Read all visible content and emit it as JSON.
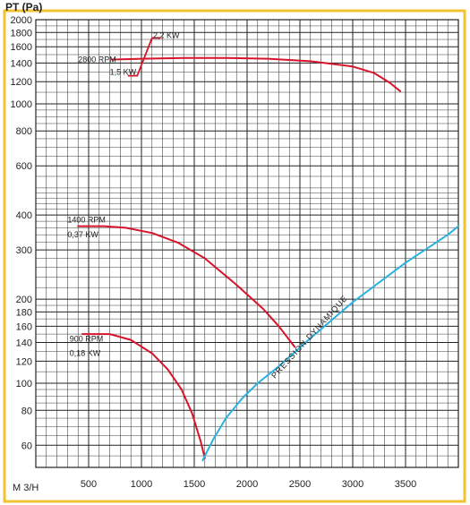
{
  "chart_data": {
    "type": "line",
    "title": "",
    "ylabel": "PT (Pa)",
    "xlabel": "M 3/H",
    "xlim": [
      0,
      4000
    ],
    "ylim": [
      50,
      2000
    ],
    "y_scale": "log",
    "x_ticks": [
      "500",
      "1000",
      "1500",
      "2000",
      "2500",
      "3000",
      "3500"
    ],
    "y_ticks": [
      "2000",
      "1800",
      "1600",
      "1400",
      "1200",
      "1000",
      "800",
      "600",
      "400",
      "300",
      "200",
      "180",
      "160",
      "140",
      "120",
      "100",
      "80",
      "60"
    ],
    "grid": true,
    "series": [
      {
        "name": "2800 RPM",
        "color": "#d7142a",
        "points": [
          [
            720,
            1440
          ],
          [
            1000,
            1450
          ],
          [
            1400,
            1460
          ],
          [
            1800,
            1460
          ],
          [
            2200,
            1450
          ],
          [
            2600,
            1420
          ],
          [
            3000,
            1360
          ],
          [
            3200,
            1290
          ],
          [
            3350,
            1190
          ],
          [
            3450,
            1110
          ]
        ]
      },
      {
        "name": "1400 RPM 0,37 KW",
        "color": "#d7142a",
        "points": [
          [
            400,
            365
          ],
          [
            650,
            365
          ],
          [
            850,
            360
          ],
          [
            1100,
            345
          ],
          [
            1350,
            318
          ],
          [
            1600,
            280
          ],
          [
            1900,
            225
          ],
          [
            2150,
            185
          ],
          [
            2300,
            160
          ],
          [
            2450,
            135
          ]
        ]
      },
      {
        "name": "900 RPM 0,18 KW",
        "color": "#d7142a",
        "points": [
          [
            440,
            150
          ],
          [
            700,
            150
          ],
          [
            900,
            143
          ],
          [
            1100,
            128
          ],
          [
            1250,
            112
          ],
          [
            1380,
            95
          ],
          [
            1480,
            78
          ],
          [
            1560,
            62
          ],
          [
            1600,
            54
          ]
        ]
      },
      {
        "name": "PRESSION DYNAMIQUE",
        "color": "#29b2e0",
        "points": [
          [
            1580,
            53
          ],
          [
            1680,
            63
          ],
          [
            1800,
            75
          ],
          [
            1950,
            88
          ],
          [
            2100,
            100
          ],
          [
            2300,
            115
          ],
          [
            2600,
            145
          ],
          [
            3000,
            195
          ],
          [
            3500,
            270
          ],
          [
            3900,
            340
          ],
          [
            4000,
            365
          ]
        ]
      }
    ],
    "motor_step": {
      "color": "#d7142a",
      "labels": [
        "1,5 KW",
        "2,2 KW"
      ],
      "points": [
        [
          870,
          1260
        ],
        [
          960,
          1260
        ],
        [
          1100,
          1720
        ],
        [
          1180,
          1720
        ]
      ]
    },
    "annotations": [
      {
        "text": "2800 RPM",
        "x": 400,
        "y": 1440
      },
      {
        "text": "1,5 KW",
        "x": 700,
        "y": 1300
      },
      {
        "text": "2,2 KW",
        "x": 1110,
        "y": 1760
      },
      {
        "text": "1400 RPM",
        "x": 300,
        "y": 385
      },
      {
        "text": "0,37 KW",
        "x": 300,
        "y": 340
      },
      {
        "text": "900 RPM",
        "x": 320,
        "y": 144
      },
      {
        "text": "0,18 KW",
        "x": 320,
        "y": 128
      }
    ],
    "diagonal_label": "PRESSION DYNAMIQUE"
  }
}
